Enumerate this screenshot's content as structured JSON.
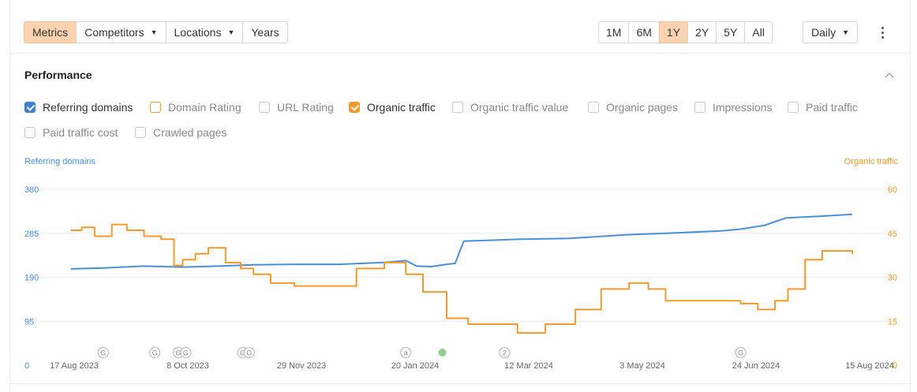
{
  "toolbar": {
    "tabs": [
      {
        "label": "Metrics",
        "active": true
      },
      {
        "label": "Competitors",
        "dropdown": true
      },
      {
        "label": "Locations",
        "dropdown": true
      },
      {
        "label": "Years"
      }
    ],
    "ranges": [
      "1M",
      "6M",
      "1Y",
      "2Y",
      "5Y",
      "All"
    ],
    "active_range": "1Y",
    "interval": "Daily",
    "more_icon": "kebab-icon"
  },
  "section": {
    "title": "Performance",
    "collapse_icon": "chevron-up-icon"
  },
  "metrics": [
    {
      "label": "Referring domains",
      "checked": true,
      "color": "blue"
    },
    {
      "label": "Domain Rating",
      "checked": false,
      "color": "orange"
    },
    {
      "label": "URL Rating",
      "checked": false
    },
    {
      "label": "Organic traffic",
      "checked": true,
      "color": "orange"
    },
    {
      "label": "Organic traffic value",
      "checked": false
    },
    {
      "label": "Organic pages",
      "checked": false
    },
    {
      "label": "Impressions",
      "checked": false
    },
    {
      "label": "Paid traffic",
      "checked": false
    },
    {
      "label": "Paid traffic cost",
      "checked": false
    },
    {
      "label": "Crawled pages",
      "checked": false
    }
  ],
  "colors": {
    "blue": "#4a90d9",
    "orange": "#f39a2d",
    "grid": "#ebebeb",
    "active": "#fbd3b0"
  },
  "chart_data": {
    "type": "line",
    "left_axis_title": "Referring domains",
    "right_axis_title": "Organic traffic",
    "x_ticks": [
      "17 Aug 2023",
      "8 Oct 2023",
      "29 Nov 2023",
      "20 Jan 2024",
      "12 Mar 2024",
      "3 May 2024",
      "24 Jun 2024",
      "15 Aug 2024"
    ],
    "left_ticks": [
      "0",
      "95",
      "190",
      "285",
      "380"
    ],
    "right_ticks": [
      "0",
      "15",
      "30",
      "45",
      "60"
    ],
    "ylim_left": [
      0,
      380
    ],
    "ylim_right": [
      0,
      60
    ],
    "grid": true,
    "series": [
      {
        "name": "Referring domains",
        "axis": "left",
        "color": "#4a90d9",
        "x": [
          "2023-08-17",
          "2023-09-01",
          "2023-09-20",
          "2023-10-08",
          "2023-10-25",
          "2023-11-10",
          "2023-11-29",
          "2023-12-20",
          "2024-01-10",
          "2024-01-20",
          "2024-01-25",
          "2024-02-01",
          "2024-02-08",
          "2024-02-12",
          "2024-02-16",
          "2024-03-12",
          "2024-04-05",
          "2024-05-03",
          "2024-05-25",
          "2024-06-15",
          "2024-06-24",
          "2024-07-05",
          "2024-07-15",
          "2024-08-01",
          "2024-08-15"
        ],
        "y": [
          208,
          210,
          214,
          212,
          214,
          217,
          218,
          218,
          222,
          226,
          214,
          213,
          218,
          220,
          268,
          272,
          274,
          282,
          286,
          290,
          294,
          302,
          318,
          322,
          326
        ]
      },
      {
        "name": "Organic traffic",
        "axis": "right",
        "color": "#f39a2d",
        "x": [
          "2023-08-17",
          "2023-08-22",
          "2023-08-28",
          "2023-09-05",
          "2023-09-12",
          "2023-09-20",
          "2023-09-28",
          "2023-10-04",
          "2023-10-08",
          "2023-10-14",
          "2023-10-20",
          "2023-10-28",
          "2023-11-04",
          "2023-11-10",
          "2023-11-18",
          "2023-11-29",
          "2023-12-10",
          "2023-12-24",
          "2023-12-28",
          "2024-01-10",
          "2024-01-20",
          "2024-01-28",
          "2024-02-08",
          "2024-02-18",
          "2024-03-01",
          "2024-03-12",
          "2024-03-25",
          "2024-04-08",
          "2024-04-20",
          "2024-05-03",
          "2024-05-12",
          "2024-05-20",
          "2024-06-05",
          "2024-06-24",
          "2024-07-02",
          "2024-07-10",
          "2024-07-16",
          "2024-07-24",
          "2024-08-01",
          "2024-08-15"
        ],
        "y": [
          46,
          47,
          44,
          48,
          46,
          44,
          43,
          34,
          36,
          38,
          40,
          35,
          33,
          31,
          28,
          27,
          27,
          27,
          33,
          35,
          31,
          25,
          16,
          14,
          14,
          11,
          14,
          19,
          26,
          28,
          26,
          22,
          22,
          21,
          19,
          22,
          26,
          36,
          39,
          38
        ]
      }
    ],
    "events": [
      {
        "date": "2023-09-01",
        "label": "G"
      },
      {
        "date": "2023-09-25",
        "label": "G"
      },
      {
        "date": "2023-10-06",
        "label": "G"
      },
      {
        "date": "2023-10-08",
        "label": "G"
      },
      {
        "date": "2023-11-05",
        "label": "G"
      },
      {
        "date": "2023-11-08",
        "label": "G"
      },
      {
        "date": "2024-01-20",
        "label": "a"
      },
      {
        "date": "2024-02-06",
        "label": ""
      },
      {
        "date": "2024-03-06",
        "label": "2"
      },
      {
        "date": "2024-06-24",
        "label": "G"
      }
    ]
  }
}
